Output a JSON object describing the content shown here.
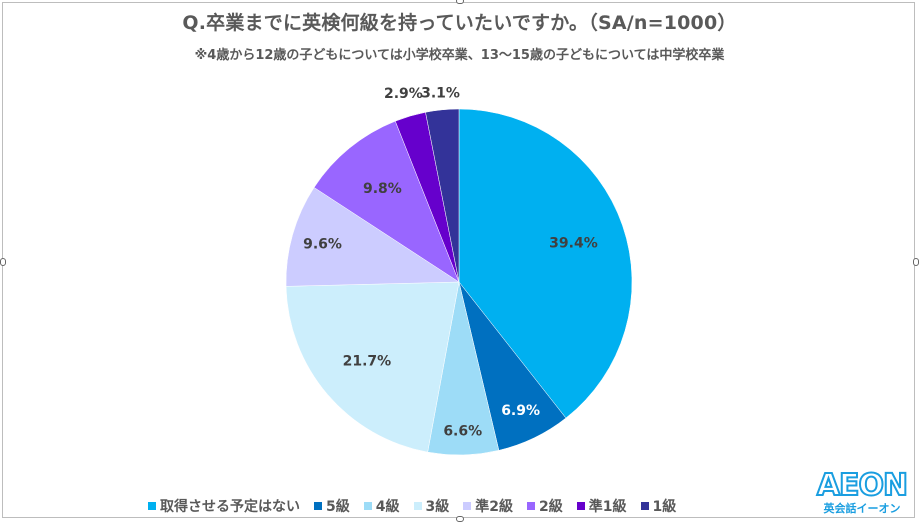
{
  "chart_data": {
    "type": "pie",
    "title": "Q.卒業までに英検何級を持っていたいですか。（SA/n=1000）",
    "subtitle": "※4歳から12歳の子どもについては小学校卒業、13〜15歳の子どもについては中学校卒業",
    "start_angle_deg": 0,
    "direction": "clockwise",
    "categories": [
      "取得させる予定はない",
      "5級",
      "4級",
      "3級",
      "準2級",
      "2級",
      "準1級",
      "1級"
    ],
    "values": [
      39.4,
      6.9,
      6.6,
      21.7,
      9.6,
      9.8,
      2.9,
      3.1
    ],
    "labels": [
      "39.4%",
      "6.9%",
      "6.6%",
      "21.7%",
      "9.6%",
      "9.8%",
      "2.9%",
      "3.1%"
    ],
    "colors": [
      "#00B0F0",
      "#0070C0",
      "#9DDCF7",
      "#CCEEFC",
      "#CCCCFF",
      "#9966FF",
      "#6600CC",
      "#333399"
    ],
    "label_colors": [
      "#404040",
      "#ffffff",
      "#404040",
      "#404040",
      "#404040",
      "#404040",
      "#404040",
      "#404040"
    ],
    "legend_position": "bottom",
    "n": 1000
  },
  "legend": {
    "items": [
      {
        "label": "取得させる予定はない",
        "color": "#00B0F0"
      },
      {
        "label": "5級",
        "color": "#0070C0"
      },
      {
        "label": "4級",
        "color": "#9DDCF7"
      },
      {
        "label": "3級",
        "color": "#CCEEFC"
      },
      {
        "label": "準2級",
        "color": "#CCCCFF"
      },
      {
        "label": "2級",
        "color": "#9966FF"
      },
      {
        "label": "準1級",
        "color": "#6600CC"
      },
      {
        "label": "1級",
        "color": "#333399"
      }
    ]
  },
  "logo": {
    "main": "AEON",
    "sub": "英会話イーオン"
  }
}
